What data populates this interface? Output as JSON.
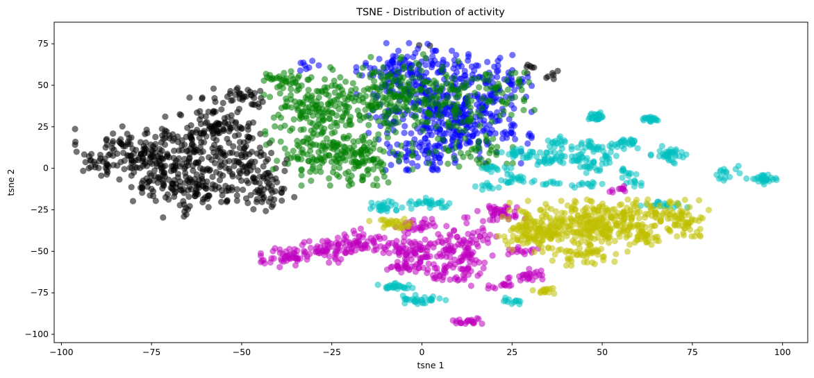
{
  "chart_data": {
    "type": "scatter",
    "title": "TSNE - Distribution of activity",
    "xlabel": "tsne 1",
    "ylabel": "tsne 2",
    "xlim": [
      -102,
      107
    ],
    "ylim": [
      -105,
      88
    ],
    "xticks": [
      -100,
      -75,
      -50,
      -25,
      0,
      25,
      50,
      75,
      100
    ],
    "yticks": [
      -100,
      -75,
      -50,
      -25,
      0,
      25,
      50,
      75
    ],
    "xtick_labels": [
      "−100",
      "−75",
      "−50",
      "−25",
      "0",
      "25",
      "50",
      "75",
      "100"
    ],
    "ytick_labels": [
      "−100",
      "−75",
      "−50",
      "−25",
      "0",
      "25",
      "50",
      "75"
    ],
    "grid": false,
    "point_alpha": 0.55,
    "series": [
      {
        "color": "#000000",
        "clusters": [
          {
            "cx": -83,
            "cy": 12,
            "sx": 6,
            "sy": 6,
            "n": 70
          },
          {
            "cx": -72,
            "cy": 0,
            "sx": 7,
            "sy": 9,
            "n": 110
          },
          {
            "cx": -60,
            "cy": -12,
            "sx": 8,
            "sy": 8,
            "n": 120
          },
          {
            "cx": -58,
            "cy": 25,
            "sx": 6,
            "sy": 8,
            "n": 90
          },
          {
            "cx": -48,
            "cy": 5,
            "sx": 6,
            "sy": 10,
            "n": 80
          },
          {
            "cx": -42,
            "cy": -12,
            "sx": 3,
            "sy": 6,
            "n": 35
          },
          {
            "cx": -90,
            "cy": 2,
            "sx": 2.5,
            "sy": 3,
            "n": 20
          },
          {
            "cx": -50,
            "cy": 42,
            "sx": 5,
            "sy": 4,
            "n": 35
          },
          {
            "cx": -66,
            "cy": 12,
            "sx": 8,
            "sy": 7,
            "n": 70
          },
          {
            "cx": 30,
            "cy": 60,
            "sx": 1.2,
            "sy": 1.5,
            "n": 6
          },
          {
            "cx": 36,
            "cy": 56,
            "sx": 1.2,
            "sy": 1.2,
            "n": 6
          },
          {
            "cx": 1,
            "cy": 74,
            "sx": 1,
            "sy": 1,
            "n": 2
          }
        ]
      },
      {
        "color": "#0000ff",
        "clusters": [
          {
            "cx": 5,
            "cy": 40,
            "sx": 9,
            "sy": 14,
            "n": 300
          },
          {
            "cx": 15,
            "cy": 25,
            "sx": 7,
            "sy": 10,
            "n": 120
          },
          {
            "cx": -5,
            "cy": 60,
            "sx": 6,
            "sy": 7,
            "n": 80
          },
          {
            "cx": 20,
            "cy": 55,
            "sx": 5,
            "sy": 6,
            "n": 50
          },
          {
            "cx": 2,
            "cy": 10,
            "sx": 6,
            "sy": 7,
            "n": 70
          },
          {
            "cx": -33,
            "cy": 62,
            "sx": 2,
            "sy": 2,
            "n": 8
          }
        ]
      },
      {
        "color": "#008000",
        "clusters": [
          {
            "cx": -28,
            "cy": 35,
            "sx": 8,
            "sy": 9,
            "n": 180
          },
          {
            "cx": -18,
            "cy": 5,
            "sx": 7,
            "sy": 7,
            "n": 140
          },
          {
            "cx": -10,
            "cy": 45,
            "sx": 7,
            "sy": 10,
            "n": 120
          },
          {
            "cx": 5,
            "cy": 40,
            "sx": 9,
            "sy": 14,
            "n": 140
          },
          {
            "cx": -38,
            "cy": 52,
            "sx": 4,
            "sy": 3,
            "n": 30
          },
          {
            "cx": -30,
            "cy": 10,
            "sx": 6,
            "sy": 6,
            "n": 60
          },
          {
            "cx": 12,
            "cy": 10,
            "sx": 6,
            "sy": 6,
            "n": 40
          },
          {
            "cx": 22,
            "cy": 45,
            "sx": 6,
            "sy": 7,
            "n": 40
          }
        ]
      },
      {
        "color": "#00bfbf",
        "clusters": [
          {
            "cx": 48,
            "cy": 31,
            "sx": 1.5,
            "sy": 1.2,
            "n": 25
          },
          {
            "cx": 63,
            "cy": 30,
            "sx": 1.5,
            "sy": 1.2,
            "n": 20
          },
          {
            "cx": 57,
            "cy": 15,
            "sx": 2,
            "sy": 1.5,
            "n": 25
          },
          {
            "cx": 47,
            "cy": 13,
            "sx": 2.5,
            "sy": 1.5,
            "n": 25
          },
          {
            "cx": 37,
            "cy": 15,
            "sx": 1.5,
            "sy": 2,
            "n": 15
          },
          {
            "cx": 28,
            "cy": 9,
            "sx": 3,
            "sy": 1.5,
            "n": 25
          },
          {
            "cx": 35,
            "cy": 6,
            "sx": 3,
            "sy": 2.5,
            "n": 30
          },
          {
            "cx": 43,
            "cy": 5,
            "sx": 2,
            "sy": 1.5,
            "n": 15
          },
          {
            "cx": 51,
            "cy": 5,
            "sx": 2,
            "sy": 1.5,
            "n": 15
          },
          {
            "cx": 69,
            "cy": 8,
            "sx": 2.5,
            "sy": 2.5,
            "n": 35
          },
          {
            "cx": 47,
            "cy": 0,
            "sx": 2,
            "sy": 1.5,
            "n": 12
          },
          {
            "cx": 57,
            "cy": -3,
            "sx": 1.5,
            "sy": 1.5,
            "n": 10
          },
          {
            "cx": 21,
            "cy": 0,
            "sx": 2,
            "sy": 1,
            "n": 15
          },
          {
            "cx": 27,
            "cy": -7,
            "sx": 2.5,
            "sy": 1.5,
            "n": 20
          },
          {
            "cx": 18,
            "cy": -11,
            "sx": 1.5,
            "sy": 1,
            "n": 10
          },
          {
            "cx": 36,
            "cy": -9,
            "sx": 1.5,
            "sy": 1,
            "n": 8
          },
          {
            "cx": 46,
            "cy": -9,
            "sx": 2,
            "sy": 1.2,
            "n": 12
          },
          {
            "cx": 60,
            "cy": -9,
            "sx": 1.5,
            "sy": 1,
            "n": 8
          },
          {
            "cx": 84,
            "cy": -3,
            "sx": 2,
            "sy": 2,
            "n": 15
          },
          {
            "cx": 94,
            "cy": -7,
            "sx": 2,
            "sy": 1.5,
            "n": 25
          },
          {
            "cx": -11,
            "cy": -23,
            "sx": 2.5,
            "sy": 1.5,
            "n": 25
          },
          {
            "cx": 1,
            "cy": -21,
            "sx": 3,
            "sy": 1.5,
            "n": 28
          },
          {
            "cx": 67,
            "cy": -22,
            "sx": 3,
            "sy": 1,
            "n": 18
          },
          {
            "cx": -7,
            "cy": -71,
            "sx": 2.5,
            "sy": 1.2,
            "n": 25
          },
          {
            "cx": 0,
            "cy": -79,
            "sx": 3,
            "sy": 1.2,
            "n": 30
          },
          {
            "cx": 26,
            "cy": -80,
            "sx": 1.5,
            "sy": 1,
            "n": 12
          }
        ]
      },
      {
        "color": "#bf00bf",
        "clusters": [
          {
            "cx": -37,
            "cy": -53,
            "sx": 3.5,
            "sy": 3,
            "n": 50
          },
          {
            "cx": -25,
            "cy": -48,
            "sx": 4,
            "sy": 4,
            "n": 60
          },
          {
            "cx": -17,
            "cy": -45,
            "sx": 3,
            "sy": 4,
            "n": 40
          },
          {
            "cx": -3,
            "cy": -50,
            "sx": 4,
            "sy": 5,
            "n": 80
          },
          {
            "cx": 12,
            "cy": -45,
            "sx": 4,
            "sy": 7,
            "n": 90
          },
          {
            "cx": 22,
            "cy": -27,
            "sx": 3,
            "sy": 2.5,
            "n": 40
          },
          {
            "cx": 8,
            "cy": -62,
            "sx": 4,
            "sy": 4,
            "n": 50
          },
          {
            "cx": 29,
            "cy": -65,
            "sx": 2.5,
            "sy": 2,
            "n": 25
          },
          {
            "cx": 28,
            "cy": -50,
            "sx": 2,
            "sy": 1.2,
            "n": 15
          },
          {
            "cx": -3,
            "cy": -35,
            "sx": 3,
            "sy": 2,
            "n": 30
          },
          {
            "cx": 22,
            "cy": -71,
            "sx": 2,
            "sy": 1,
            "n": 12
          },
          {
            "cx": 13,
            "cy": -92,
            "sx": 2,
            "sy": 1,
            "n": 20
          },
          {
            "cx": 53,
            "cy": -13,
            "sx": 1.5,
            "sy": 1,
            "n": 10
          },
          {
            "cx": -4,
            "cy": -60,
            "sx": 2,
            "sy": 2,
            "n": 20
          }
        ]
      },
      {
        "color": "#bfbf00",
        "clusters": [
          {
            "cx": 40,
            "cy": -35,
            "sx": 8,
            "sy": 7,
            "n": 220
          },
          {
            "cx": 55,
            "cy": -32,
            "sx": 7,
            "sy": 6,
            "n": 160
          },
          {
            "cx": 72,
            "cy": -30,
            "sx": 4,
            "sy": 5,
            "n": 80
          },
          {
            "cx": 30,
            "cy": -38,
            "sx": 4,
            "sy": 4,
            "n": 60
          },
          {
            "cx": -8,
            "cy": -33,
            "sx": 3,
            "sy": 1.5,
            "n": 28
          },
          {
            "cx": 34,
            "cy": -74,
            "sx": 2,
            "sy": 1,
            "n": 15
          },
          {
            "cx": 62,
            "cy": -42,
            "sx": 2.5,
            "sy": 2,
            "n": 20
          },
          {
            "cx": 45,
            "cy": -52,
            "sx": 4,
            "sy": 3,
            "n": 40
          }
        ]
      }
    ]
  }
}
